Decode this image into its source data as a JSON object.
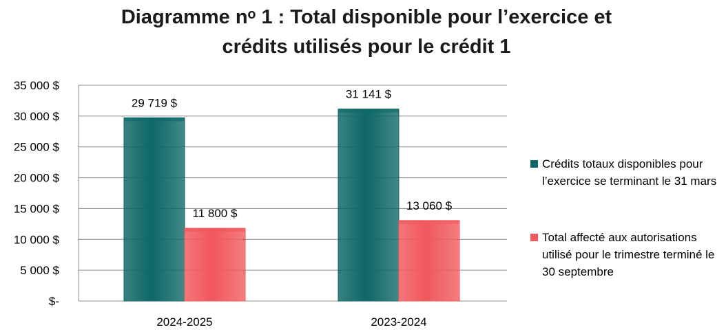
{
  "title_line1": "Diagramme nᵒ 1 : Total disponible pour l’exercice et",
  "title_line2": "crédits utilisés pour le crédit 1",
  "colors": {
    "teal": "#0d6766",
    "red": "#f0585c"
  },
  "chart_data": {
    "type": "bar",
    "categories": [
      "2024-2025",
      "2023-2024"
    ],
    "series": [
      {
        "name": "Crédits totaux disponibles pour l’exercice se terminant le 31 mars",
        "values": [
          29719,
          31141
        ],
        "labels": [
          "29 719 $",
          "31 141 $"
        ]
      },
      {
        "name": "Total affecté aux autorisations utilisé pour le trimestre terminé le 30 septembre",
        "values": [
          11800,
          13060
        ],
        "labels": [
          "11 800 $",
          "13 060 $"
        ]
      }
    ],
    "ylim": [
      0,
      35000
    ],
    "yticks": [
      35000,
      30000,
      25000,
      20000,
      15000,
      10000,
      5000,
      0
    ],
    "ytick_labels": [
      "35 000 $",
      "30 000 $",
      "25 000 $",
      "20 000 $",
      "15 000 $",
      "10 000 $",
      "5 000 $",
      "$-"
    ],
    "grid": true,
    "legend_position": "right"
  }
}
